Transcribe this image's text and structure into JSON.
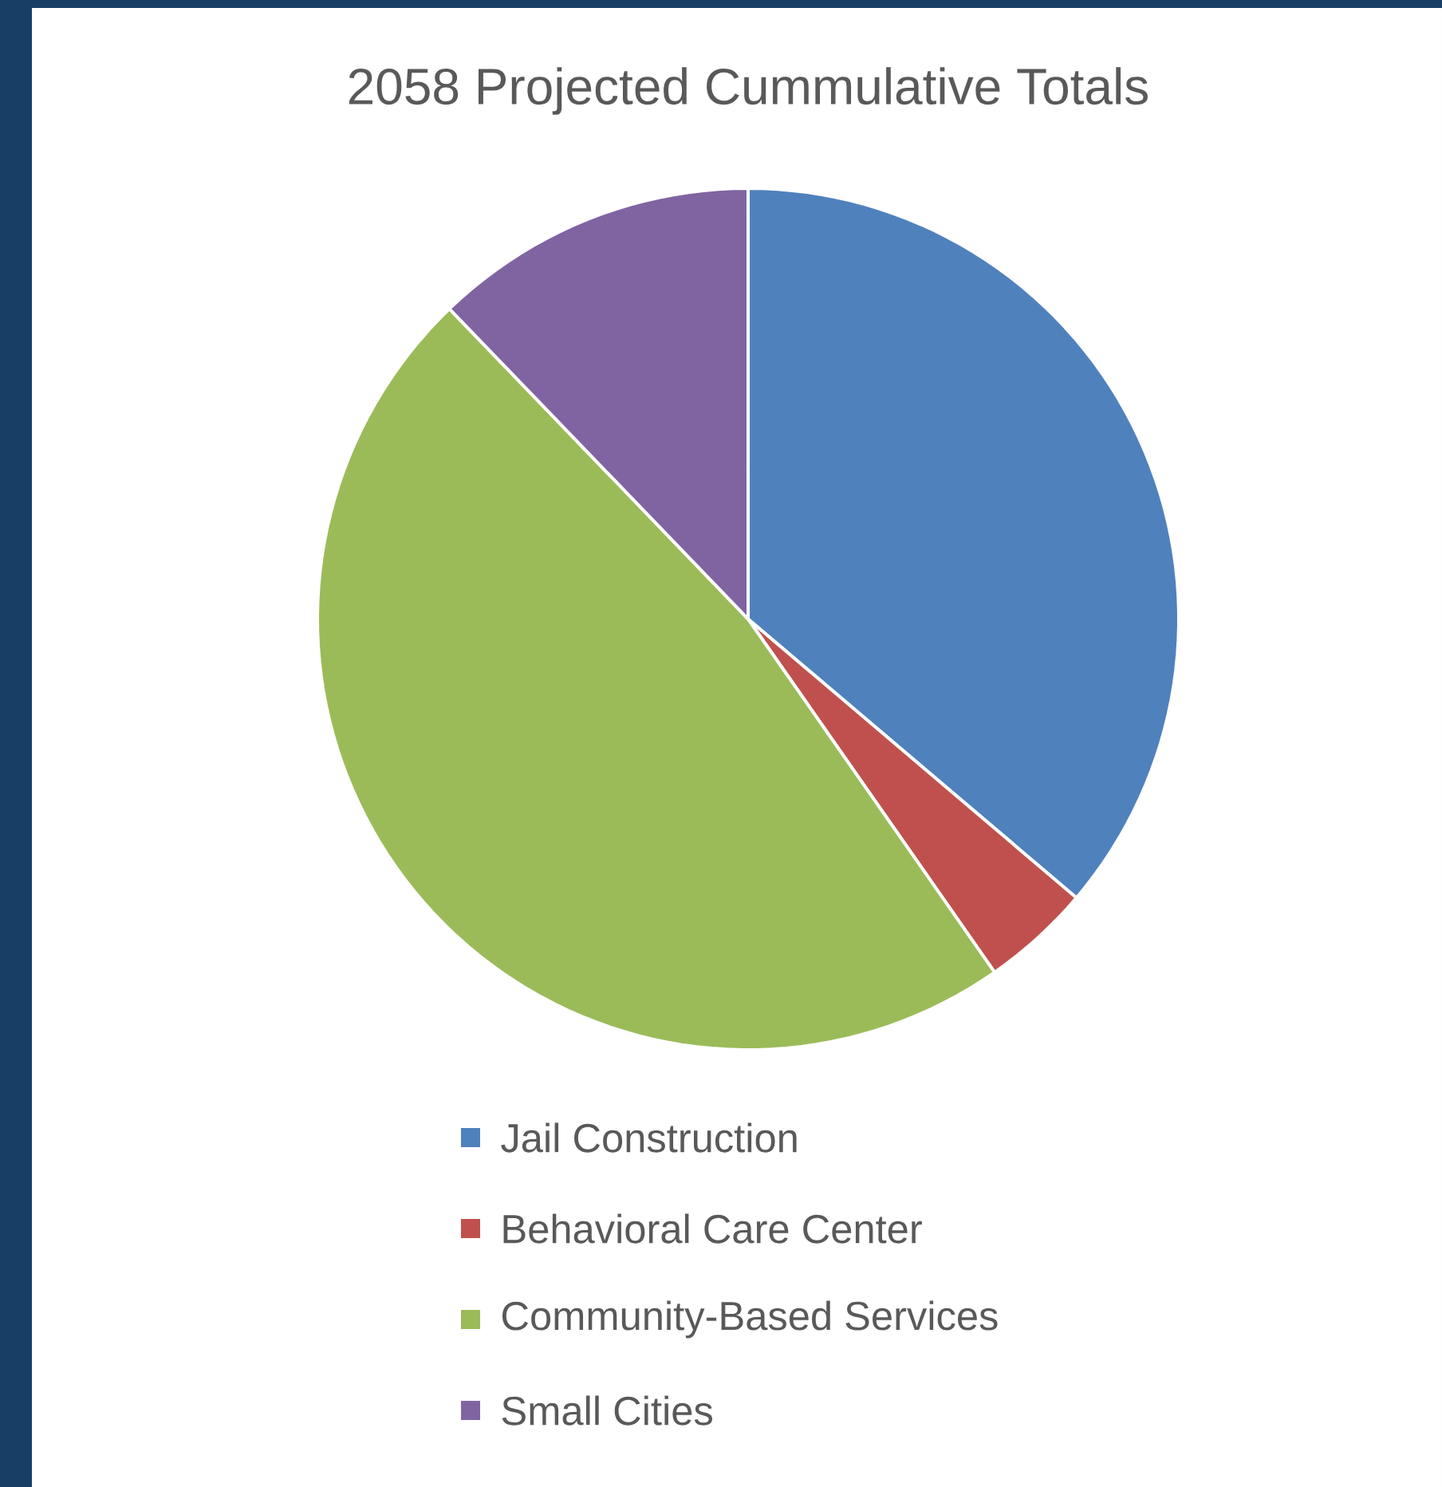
{
  "chart_data": {
    "type": "pie",
    "title": "2058 Projected Cummulative Totals",
    "categories": [
      "Jail Construction",
      "Behavioral Care Center",
      "Community-Based Services",
      "Small Cities"
    ],
    "values": [
      36.2,
      4.1,
      47.5,
      12.2
    ],
    "colors": [
      "#4f81bd",
      "#c0504d",
      "#9bbb59",
      "#8064a2"
    ],
    "legend": "bottom"
  }
}
